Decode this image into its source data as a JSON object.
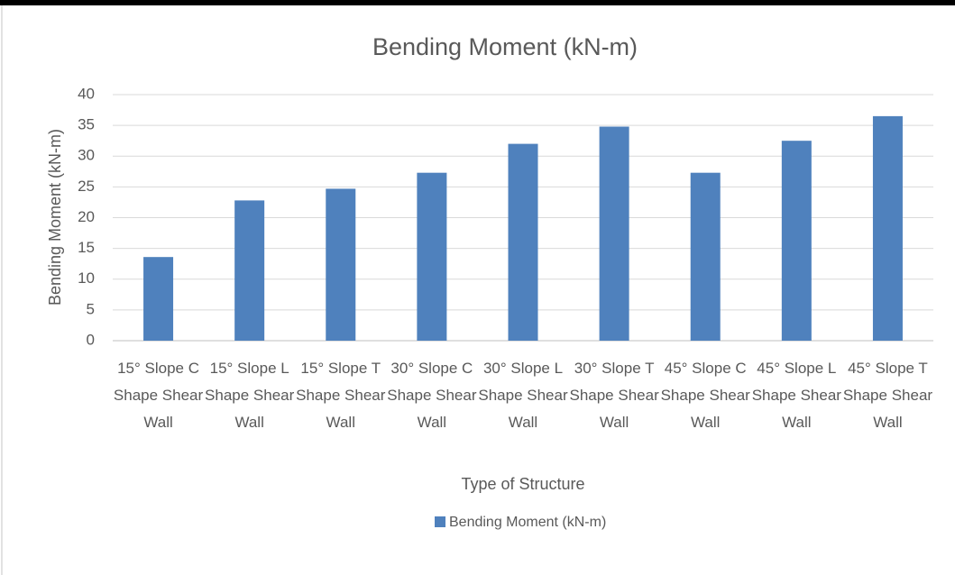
{
  "chart_data": {
    "type": "bar",
    "title": "Bending Moment (kN-m)",
    "x_label": "Type of Structure",
    "y_label": "Bending Moment (kN-m)",
    "categories": [
      "15° Slope C Shape Shear Wall",
      "15° Slope L Shape Shear Wall",
      "15° Slope T Shape Shear Wall",
      "30° Slope C Shape Shear Wall",
      "30° Slope L Shape Shear Wall",
      "30° Slope T Shape Shear Wall",
      "45° Slope C Shape Shear Wall",
      "45° Slope L Shape Shear Wall",
      "45° Slope T Shape Shear Wall"
    ],
    "series": [
      {
        "name": "Bending Moment (kN-m)",
        "color": "#4f81bd",
        "values": [
          13.6,
          22.8,
          24.7,
          27.3,
          32,
          34.8,
          27.3,
          32.5,
          36.5
        ]
      }
    ],
    "ylim": [
      0,
      40
    ],
    "yticks": [
      0,
      5,
      10,
      15,
      20,
      25,
      30,
      35,
      40
    ],
    "grid": true,
    "legend": "bottom"
  }
}
